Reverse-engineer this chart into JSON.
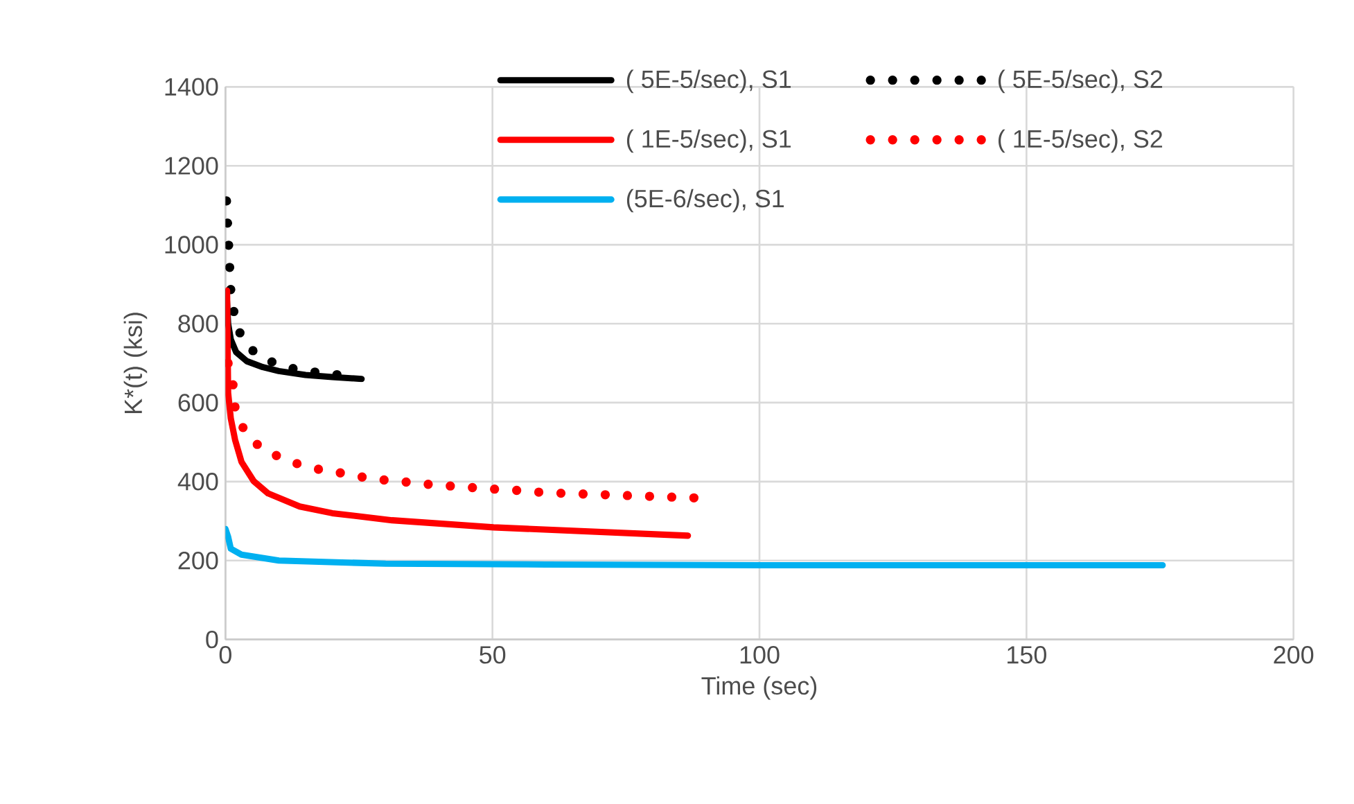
{
  "chart_data": {
    "type": "line",
    "xlabel": "Time (sec)",
    "ylabel": "K*(t) (ksi)",
    "xlim": [
      0,
      200
    ],
    "ylim": [
      0,
      1400
    ],
    "xticks": [
      0,
      50,
      100,
      150,
      200
    ],
    "yticks": [
      0,
      200,
      400,
      600,
      800,
      1000,
      1200,
      1400
    ],
    "grid": true,
    "legend": "top right",
    "series": [
      {
        "name": "( 5E-5/sec), S1",
        "color": "#000000",
        "line_style": "solid",
        "x": [
          0.2,
          0.5,
          1,
          2,
          4,
          7,
          10,
          15,
          20,
          25.5
        ],
        "values": [
          880,
          800,
          760,
          728,
          705,
          690,
          680,
          670,
          665,
          660
        ]
      },
      {
        "name": "( 5E-5/sec), S2",
        "color": "#000000",
        "line_style": "dotted",
        "x": [
          0.2,
          0.4,
          0.6,
          0.8,
          1.0,
          1.6,
          2.8,
          5.3,
          9,
          13,
          17,
          21.4,
          25
        ],
        "values": [
          1111,
          1054,
          998,
          941,
          884,
          828,
          773,
          729,
          701,
          685,
          677,
          670,
          665
        ]
      },
      {
        "name": "( 1E-5/sec), S1",
        "color": "#ff0000",
        "line_style": "solid",
        "x": [
          0.3,
          0.5,
          1,
          1.8,
          3,
          5.3,
          8,
          13.9,
          20,
          31.2,
          50.2,
          86.6
        ],
        "values": [
          884,
          625,
          560,
          506,
          450,
          401,
          370,
          337,
          320,
          302,
          284,
          263
        ]
      },
      {
        "name": "( 1E-5/sec), S2",
        "color": "#ff0000",
        "line_style": "dotted",
        "x": [
          0.5,
          1.4,
          1.8,
          3.4,
          6.1,
          9.8,
          13.7,
          17.8,
          22,
          26.2,
          30.3,
          34.5,
          38.7,
          43,
          47.1,
          51.4,
          55.5,
          59.7,
          64,
          68.2,
          72.5,
          76.6,
          80.9,
          85.1,
          89.3
        ],
        "values": [
          700,
          647,
          588,
          533,
          492,
          464,
          444,
          430,
          421,
          410,
          403,
          398,
          392,
          388,
          384,
          380,
          377,
          372,
          370,
          368,
          366,
          364,
          362,
          360,
          358
        ]
      },
      {
        "name": "(5E-6/sec), S1",
        "color": "#00b0f0",
        "line_style": "solid",
        "x": [
          0,
          0.5,
          1,
          3,
          10,
          30,
          60,
          100,
          175.5
        ],
        "values": [
          280,
          260,
          230,
          215,
          200,
          192,
          190,
          188,
          188
        ]
      }
    ]
  }
}
